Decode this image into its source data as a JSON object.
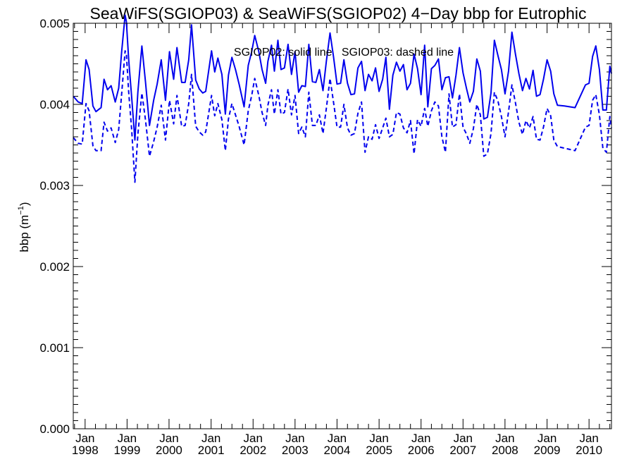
{
  "chart_data": {
    "type": "line",
    "title": "SeaWiFS(SGIOP03) & SeaWiFS(SGIOP02) 4−Day bbp for Eutrophic",
    "ylabel": "bbp (m",
    "ylabel_sup": "−1",
    "ylabel_close": ")",
    "annotation": "SGIOP02: solid line   SGIOP03: dashed line",
    "xlim": [
      "1997-09-20",
      "2010-07-15"
    ],
    "ylim": [
      0.0,
      0.005
    ],
    "grid": false,
    "x_ticks": [
      {
        "date": "1998-01-01",
        "month": "Jan",
        "year": "1998"
      },
      {
        "date": "1999-01-01",
        "month": "Jan",
        "year": "1999"
      },
      {
        "date": "2000-01-01",
        "month": "Jan",
        "year": "2000"
      },
      {
        "date": "2001-01-01",
        "month": "Jan",
        "year": "2001"
      },
      {
        "date": "2002-01-01",
        "month": "Jan",
        "year": "2002"
      },
      {
        "date": "2003-01-01",
        "month": "Jan",
        "year": "2003"
      },
      {
        "date": "2004-01-01",
        "month": "Jan",
        "year": "2004"
      },
      {
        "date": "2005-01-01",
        "month": "Jan",
        "year": "2005"
      },
      {
        "date": "2006-01-01",
        "month": "Jan",
        "year": "2006"
      },
      {
        "date": "2007-01-01",
        "month": "Jan",
        "year": "2007"
      },
      {
        "date": "2008-01-01",
        "month": "Jan",
        "year": "2008"
      },
      {
        "date": "2009-01-01",
        "month": "Jan",
        "year": "2009"
      },
      {
        "date": "2010-01-01",
        "month": "Jan",
        "year": "2010"
      }
    ],
    "y_ticks": [
      "0.000",
      "0.001",
      "0.002",
      "0.003",
      "0.004",
      "0.005"
    ],
    "series": [
      {
        "name": "SGIOP02",
        "style": "solid",
        "color": "#0000ee",
        "x": [
          "1997-09-20",
          "1997-11-02",
          "1997-12-07",
          "1998-01-09",
          "1998-02-05",
          "1998-03-10",
          "1998-04-05",
          "1998-05-20",
          "1998-06-15",
          "1998-07-15",
          "1998-08-15",
          "1998-09-20",
          "1998-10-20",
          "1998-11-15",
          "1998-12-15",
          "1998-12-26",
          "1999-01-15",
          "1999-02-10",
          "1999-03-10",
          "1999-04-05",
          "1999-05-10",
          "1999-06-10",
          "1999-07-15",
          "1999-08-20",
          "1999-09-20",
          "1999-10-25",
          "1999-12-01",
          "2000-01-05",
          "2000-02-10",
          "2000-03-10",
          "2000-04-20",
          "2000-05-20",
          "2000-06-20",
          "2000-07-15",
          "2000-08-20",
          "2000-09-20",
          "2000-10-20",
          "2000-11-15",
          "2001-01-05",
          "2001-02-01",
          "2001-03-01",
          "2001-04-05",
          "2001-05-05",
          "2001-06-01",
          "2001-07-01",
          "2001-08-01",
          "2001-09-01",
          "2001-10-15",
          "2001-11-20",
          "2001-12-20",
          "2002-01-15",
          "2002-02-20",
          "2002-03-20",
          "2002-04-20",
          "2002-05-10",
          "2002-06-10",
          "2002-07-05",
          "2002-08-05",
          "2002-09-01",
          "2002-10-01",
          "2002-11-01",
          "2002-12-01",
          "2003-01-01",
          "2003-02-01",
          "2003-03-01",
          "2003-04-01",
          "2003-05-01",
          "2003-06-01",
          "2003-07-01",
          "2003-08-01",
          "2003-09-01",
          "2003-10-01",
          "2003-11-01",
          "2003-12-01",
          "2004-01-01",
          "2004-02-01",
          "2004-03-01",
          "2004-04-01",
          "2004-05-01",
          "2004-06-01",
          "2004-07-01",
          "2004-08-01",
          "2004-09-01",
          "2004-10-01",
          "2004-11-01",
          "2004-12-01",
          "2005-01-01",
          "2005-02-01",
          "2005-03-01",
          "2005-04-01",
          "2005-05-01",
          "2005-06-01",
          "2005-07-01",
          "2005-08-01",
          "2005-09-01",
          "2005-10-01",
          "2005-11-01",
          "2005-12-01",
          "2006-01-01",
          "2006-02-01",
          "2006-03-01",
          "2006-04-01",
          "2006-05-01",
          "2006-06-01",
          "2006-07-01",
          "2006-08-01",
          "2006-09-01",
          "2006-10-01",
          "2006-11-01",
          "2006-12-01",
          "2007-01-01",
          "2007-02-01",
          "2007-03-01",
          "2007-04-01",
          "2007-05-01",
          "2007-06-01",
          "2007-07-01",
          "2007-08-01",
          "2007-09-01",
          "2007-10-01",
          "2007-11-01",
          "2007-12-01",
          "2008-01-01",
          "2008-02-01",
          "2008-03-01",
          "2008-04-01",
          "2008-05-01",
          "2008-06-01",
          "2008-07-01",
          "2008-08-01",
          "2008-09-01",
          "2008-10-01",
          "2008-11-01",
          "2008-12-01",
          "2009-01-01",
          "2009-02-01",
          "2009-03-01",
          "2009-04-01",
          "2009-06-01",
          "2009-09-01",
          "2009-12-01",
          "2010-01-01",
          "2010-02-01",
          "2010-03-01",
          "2010-04-01",
          "2010-05-01",
          "2010-06-01",
          "2010-07-01",
          "2010-07-15"
        ],
        "values": [
          0.0041,
          0.00403,
          0.00401,
          0.00455,
          0.00443,
          0.00398,
          0.00391,
          0.00396,
          0.00431,
          0.00418,
          0.00423,
          0.00403,
          0.0042,
          0.00465,
          0.0051,
          0.00502,
          0.00455,
          0.00409,
          0.00356,
          0.00415,
          0.00472,
          0.00428,
          0.00374,
          0.00405,
          0.00425,
          0.00455,
          0.00405,
          0.00465,
          0.00431,
          0.0047,
          0.00427,
          0.00427,
          0.00455,
          0.00498,
          0.0043,
          0.00419,
          0.00414,
          0.00416,
          0.00466,
          0.0044,
          0.00457,
          0.00437,
          0.00388,
          0.00436,
          0.00458,
          0.00443,
          0.00425,
          0.00397,
          0.00448,
          0.00465,
          0.00485,
          0.00465,
          0.00443,
          0.00426,
          0.00453,
          0.00473,
          0.00441,
          0.00479,
          0.00443,
          0.00445,
          0.00474,
          0.00437,
          0.00465,
          0.00415,
          0.00423,
          0.00422,
          0.00474,
          0.00428,
          0.00427,
          0.00443,
          0.00417,
          0.00454,
          0.00488,
          0.00459,
          0.00425,
          0.00426,
          0.00455,
          0.00426,
          0.00412,
          0.00413,
          0.00445,
          0.00453,
          0.00417,
          0.00437,
          0.00429,
          0.00445,
          0.00416,
          0.00431,
          0.00458,
          0.00394,
          0.00436,
          0.00452,
          0.00441,
          0.00449,
          0.00418,
          0.00426,
          0.00462,
          0.00444,
          0.00412,
          0.00473,
          0.00397,
          0.00444,
          0.00448,
          0.00456,
          0.00418,
          0.00433,
          0.00434,
          0.00408,
          0.00436,
          0.0047,
          0.00439,
          0.00419,
          0.00403,
          0.00416,
          0.00456,
          0.00441,
          0.00382,
          0.00384,
          0.00414,
          0.00479,
          0.0046,
          0.00443,
          0.00413,
          0.00441,
          0.00489,
          0.00462,
          0.00438,
          0.00417,
          0.00432,
          0.00419,
          0.00442,
          0.0041,
          0.00412,
          0.00431,
          0.00455,
          0.00441,
          0.00413,
          0.00399,
          0.00398,
          0.00396,
          0.00424,
          0.00426,
          0.00459,
          0.00472,
          0.00443,
          0.00393,
          0.00393,
          0.00447,
          0.00438
        ]
      },
      {
        "name": "SGIOP03",
        "style": "dashed",
        "color": "#0000ee",
        "x": [
          "1997-09-20",
          "1997-11-02",
          "1997-12-07",
          "1998-01-09",
          "1998-02-05",
          "1998-03-10",
          "1998-04-05",
          "1998-05-20",
          "1998-06-15",
          "1998-07-15",
          "1998-08-15",
          "1998-09-20",
          "1998-10-20",
          "1998-11-15",
          "1998-12-15",
          "1998-12-26",
          "1999-01-15",
          "1999-02-10",
          "1999-03-10",
          "1999-04-05",
          "1999-05-10",
          "1999-06-10",
          "1999-07-15",
          "1999-08-20",
          "1999-09-20",
          "1999-10-25",
          "1999-12-01",
          "2000-01-05",
          "2000-02-10",
          "2000-03-10",
          "2000-04-20",
          "2000-05-20",
          "2000-06-20",
          "2000-07-15",
          "2000-08-20",
          "2000-09-20",
          "2000-10-20",
          "2000-11-15",
          "2001-01-05",
          "2001-02-01",
          "2001-03-01",
          "2001-04-05",
          "2001-05-05",
          "2001-06-01",
          "2001-07-01",
          "2001-08-01",
          "2001-09-01",
          "2001-10-15",
          "2001-11-20",
          "2001-12-20",
          "2002-01-15",
          "2002-02-20",
          "2002-03-20",
          "2002-04-20",
          "2002-05-10",
          "2002-06-10",
          "2002-07-05",
          "2002-08-05",
          "2002-09-01",
          "2002-10-01",
          "2002-11-01",
          "2002-12-01",
          "2003-01-01",
          "2003-02-01",
          "2003-03-01",
          "2003-04-01",
          "2003-05-01",
          "2003-06-01",
          "2003-07-01",
          "2003-08-01",
          "2003-09-01",
          "2003-10-01",
          "2003-11-01",
          "2003-12-01",
          "2004-01-01",
          "2004-02-01",
          "2004-03-01",
          "2004-04-01",
          "2004-05-01",
          "2004-06-01",
          "2004-07-01",
          "2004-08-01",
          "2004-09-01",
          "2004-10-01",
          "2004-11-01",
          "2004-12-01",
          "2005-01-01",
          "2005-02-01",
          "2005-03-01",
          "2005-04-01",
          "2005-05-01",
          "2005-06-01",
          "2005-07-01",
          "2005-08-01",
          "2005-09-01",
          "2005-10-01",
          "2005-11-01",
          "2005-12-01",
          "2006-01-01",
          "2006-02-01",
          "2006-03-01",
          "2006-04-01",
          "2006-05-01",
          "2006-06-01",
          "2006-07-01",
          "2006-08-01",
          "2006-09-01",
          "2006-10-01",
          "2006-11-01",
          "2006-12-01",
          "2007-01-01",
          "2007-02-01",
          "2007-03-01",
          "2007-04-01",
          "2007-05-01",
          "2007-06-01",
          "2007-07-01",
          "2007-08-01",
          "2007-09-01",
          "2007-10-01",
          "2007-11-01",
          "2007-12-01",
          "2008-01-01",
          "2008-02-01",
          "2008-03-01",
          "2008-04-01",
          "2008-05-01",
          "2008-06-01",
          "2008-07-01",
          "2008-08-01",
          "2008-09-01",
          "2008-10-01",
          "2008-11-01",
          "2008-12-01",
          "2009-01-01",
          "2009-02-01",
          "2009-03-01",
          "2009-04-01",
          "2009-06-01",
          "2009-09-01",
          "2009-12-01",
          "2010-01-01",
          "2010-02-01",
          "2010-03-01",
          "2010-04-01",
          "2010-05-01",
          "2010-06-01",
          "2010-07-01",
          "2010-07-15"
        ],
        "values": [
          0.00359,
          0.00352,
          0.00351,
          0.00401,
          0.00392,
          0.00349,
          0.00343,
          0.00343,
          0.00378,
          0.00367,
          0.00371,
          0.00353,
          0.00369,
          0.00413,
          0.00466,
          0.00462,
          0.00415,
          0.00369,
          0.00304,
          0.00363,
          0.00414,
          0.00381,
          0.00336,
          0.00354,
          0.00372,
          0.00399,
          0.00356,
          0.00405,
          0.00376,
          0.00411,
          0.00373,
          0.00374,
          0.00401,
          0.00437,
          0.00373,
          0.00366,
          0.00362,
          0.00366,
          0.00411,
          0.00386,
          0.00401,
          0.00381,
          0.00343,
          0.00382,
          0.00401,
          0.00387,
          0.00373,
          0.0035,
          0.00392,
          0.00411,
          0.00432,
          0.00411,
          0.0039,
          0.00374,
          0.00399,
          0.00418,
          0.00388,
          0.00418,
          0.00388,
          0.0039,
          0.00419,
          0.00387,
          0.00411,
          0.00364,
          0.00372,
          0.0036,
          0.00415,
          0.00374,
          0.00374,
          0.00387,
          0.00364,
          0.00396,
          0.00432,
          0.00403,
          0.00372,
          0.00372,
          0.004,
          0.00371,
          0.00362,
          0.00364,
          0.00389,
          0.00403,
          0.00341,
          0.0036,
          0.00357,
          0.00375,
          0.00358,
          0.00371,
          0.00383,
          0.0036,
          0.00363,
          0.0039,
          0.00388,
          0.00371,
          0.00365,
          0.0038,
          0.00339,
          0.00381,
          0.00373,
          0.00395,
          0.00373,
          0.00392,
          0.00403,
          0.00398,
          0.0036,
          0.00341,
          0.00413,
          0.00372,
          0.00375,
          0.00413,
          0.00372,
          0.00363,
          0.00352,
          0.0037,
          0.004,
          0.00387,
          0.00336,
          0.00339,
          0.00364,
          0.00415,
          0.00404,
          0.00385,
          0.0036,
          0.00391,
          0.00424,
          0.00402,
          0.00378,
          0.00363,
          0.0038,
          0.00371,
          0.00385,
          0.00357,
          0.00356,
          0.00372,
          0.00395,
          0.00386,
          0.00356,
          0.00348,
          0.00346,
          0.00343,
          0.00372,
          0.00374,
          0.00405,
          0.00412,
          0.00387,
          0.00346,
          0.00341,
          0.00385,
          0.00371
        ]
      }
    ]
  }
}
